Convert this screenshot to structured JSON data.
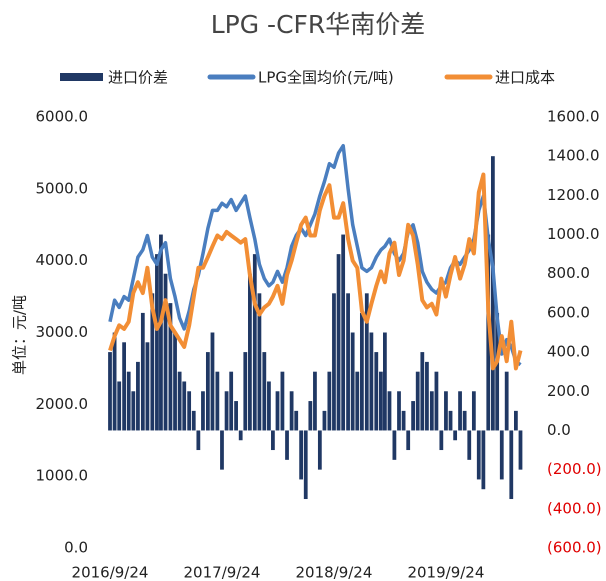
{
  "chart_data": {
    "type": "combo",
    "title": "LPG -CFR华南价差",
    "y_label": "单位：元/吨",
    "x": [
      "2016/9/24",
      "2016/10/9",
      "2016/10/24",
      "2016/11/9",
      "2016/11/24",
      "2016/12/9",
      "2016/12/24",
      "2017/1/9",
      "2017/1/24",
      "2017/2/9",
      "2017/2/24",
      "2017/3/9",
      "2017/3/24",
      "2017/4/9",
      "2017/4/24",
      "2017/5/9",
      "2017/5/24",
      "2017/6/9",
      "2017/6/24",
      "2017/7/9",
      "2017/7/24",
      "2017/8/9",
      "2017/8/24",
      "2017/9/9",
      "2017/9/24",
      "2017/10/9",
      "2017/10/24",
      "2017/11/9",
      "2017/11/24",
      "2017/12/9",
      "2017/12/24",
      "2018/1/9",
      "2018/1/24",
      "2018/2/9",
      "2018/2/24",
      "2018/3/9",
      "2018/3/24",
      "2018/4/9",
      "2018/4/24",
      "2018/5/9",
      "2018/5/24",
      "2018/6/9",
      "2018/6/24",
      "2018/7/9",
      "2018/7/24",
      "2018/8/9",
      "2018/8/24",
      "2018/9/9",
      "2018/9/24",
      "2018/10/9",
      "2018/10/24",
      "2018/11/9",
      "2018/11/24",
      "2018/12/9",
      "2018/12/24",
      "2019/1/9",
      "2019/1/24",
      "2019/2/9",
      "2019/2/24",
      "2019/3/9",
      "2019/3/24",
      "2019/4/9",
      "2019/4/24",
      "2019/5/9",
      "2019/5/24",
      "2019/6/9",
      "2019/6/24",
      "2019/7/9",
      "2019/7/24",
      "2019/8/9",
      "2019/8/24",
      "2019/9/9",
      "2019/9/24",
      "2019/10/9",
      "2019/10/24",
      "2019/11/9",
      "2019/11/24",
      "2019/12/9",
      "2019/12/24",
      "2020/1/9",
      "2020/1/24",
      "2020/2/9",
      "2020/2/24",
      "2020/3/9",
      "2020/3/24",
      "2020/4/9",
      "2020/4/24",
      "2020/5/9",
      "2020/5/24"
    ],
    "xlim": [
      "2016/9/24",
      "2020/6/24"
    ],
    "xticks": [
      "2016/9/24",
      "2017/9/24",
      "2018/9/24",
      "2019/9/24"
    ],
    "series": [
      {
        "name": "进口价差",
        "type": "bar",
        "axis": "y2",
        "color": "#203864",
        "values": [
          400,
          500,
          250,
          450,
          300,
          200,
          350,
          600,
          450,
          700,
          900,
          1000,
          800,
          650,
          500,
          300,
          250,
          200,
          100,
          -100,
          200,
          400,
          500,
          300,
          -200,
          200,
          300,
          150,
          -50,
          400,
          800,
          900,
          700,
          400,
          250,
          -100,
          200,
          300,
          -150,
          200,
          100,
          -250,
          -350,
          150,
          300,
          -200,
          100,
          300,
          700,
          900,
          1000,
          700,
          500,
          300,
          600,
          700,
          500,
          400,
          300,
          500,
          200,
          -150,
          200,
          100,
          -100,
          150,
          300,
          400,
          350,
          200,
          300,
          -100,
          200,
          100,
          -50,
          200,
          100,
          -150,
          200,
          -250,
          -300,
          1000,
          1400,
          600,
          -250,
          300,
          -350,
          100,
          -200
        ]
      },
      {
        "name": "LPG全国均价(元/吨)",
        "type": "line",
        "color": "#4a7ebf",
        "values": [
          3150,
          3450,
          3350,
          3500,
          3450,
          3750,
          4050,
          4150,
          4350,
          4050,
          3950,
          4150,
          4250,
          3750,
          3500,
          3200,
          3050,
          3300,
          3600,
          3800,
          4100,
          4450,
          4700,
          4700,
          4800,
          4750,
          4850,
          4700,
          4800,
          4900,
          4600,
          4300,
          3950,
          3750,
          3650,
          3700,
          3850,
          3700,
          3900,
          4200,
          4350,
          4450,
          4350,
          4500,
          4650,
          4900,
          5100,
          5350,
          5300,
          5500,
          5600,
          5000,
          4500,
          4200,
          3900,
          3850,
          3900,
          4050,
          4150,
          4200,
          4300,
          4100,
          4000,
          4100,
          4400,
          4500,
          4250,
          3850,
          3700,
          3600,
          3550,
          3650,
          3700,
          3900,
          4000,
          3950,
          4050,
          4150,
          4300,
          4700,
          4900,
          4300,
          3900,
          3200,
          2700,
          2900,
          2800,
          2600,
          2550
        ]
      },
      {
        "name": "进口成本",
        "type": "line",
        "color": "#f28e35",
        "values": [
          2750,
          2950,
          3100,
          3050,
          3150,
          3550,
          3700,
          3550,
          3900,
          3350,
          3050,
          3150,
          3450,
          3100,
          3000,
          2900,
          2800,
          3100,
          3500,
          3900,
          3900,
          4050,
          4200,
          4350,
          4300,
          4400,
          4350,
          4300,
          4250,
          4300,
          3800,
          3400,
          3250,
          3350,
          3400,
          3500,
          3650,
          3400,
          3800,
          4000,
          4250,
          4500,
          4600,
          4350,
          4350,
          4700,
          4900,
          5050,
          4600,
          4600,
          4800,
          4300,
          4000,
          3900,
          3300,
          3150,
          3400,
          3650,
          3850,
          3700,
          4100,
          4250,
          3800,
          4000,
          4500,
          4350,
          3950,
          3450,
          3350,
          3400,
          3250,
          3750,
          3500,
          3800,
          4050,
          3750,
          3950,
          4300,
          4100,
          4950,
          5200,
          3300,
          2500,
          2600,
          2950,
          2600,
          3150,
          2500,
          2750
        ]
      }
    ],
    "ylim": [
      0,
      6000
    ],
    "yticks": [
      {
        "value": 0,
        "label": "0.0"
      },
      {
        "value": 1000,
        "label": "1000.0"
      },
      {
        "value": 2000,
        "label": "2000.0"
      },
      {
        "value": 3000,
        "label": "3000.0"
      },
      {
        "value": 4000,
        "label": "4000.0"
      },
      {
        "value": 5000,
        "label": "5000.0"
      },
      {
        "value": 6000,
        "label": "6000.0"
      }
    ],
    "y2lim": [
      -600,
      1600
    ],
    "y2ticks": [
      {
        "value": -600,
        "label": "(600.0)"
      },
      {
        "value": -400,
        "label": "(400.0)"
      },
      {
        "value": -200,
        "label": "(200.0)"
      },
      {
        "value": 0,
        "label": "0.0"
      },
      {
        "value": 200,
        "label": "200.0"
      },
      {
        "value": 400,
        "label": "400.0"
      },
      {
        "value": 600,
        "label": "600.0"
      },
      {
        "value": 800,
        "label": "800.0"
      },
      {
        "value": 1000,
        "label": "1000.0"
      },
      {
        "value": 1200,
        "label": "1200.0"
      },
      {
        "value": 1400,
        "label": "1400.0"
      },
      {
        "value": 1600,
        "label": "1600.0"
      }
    ],
    "y2_negative_label_color": "#e00000",
    "grid": false,
    "legend": "top"
  }
}
